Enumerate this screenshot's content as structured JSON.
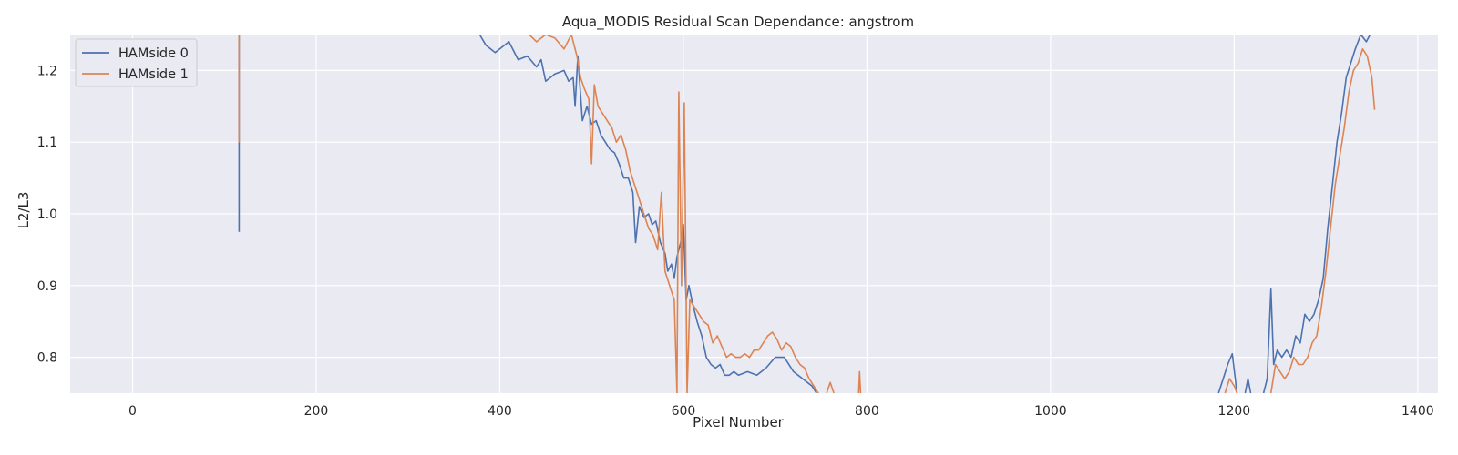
{
  "chart_data": {
    "type": "line",
    "title": "Aqua_MODIS Residual Scan Dependance: angstrom",
    "xlabel": "Pixel Number",
    "ylabel": "L2/L3",
    "xlim": [
      -68,
      1422
    ],
    "ylim": [
      0.75,
      1.25
    ],
    "xticks": [
      0,
      200,
      400,
      600,
      800,
      1000,
      1200,
      1400
    ],
    "yticks": [
      0.8,
      0.9,
      1.0,
      1.1,
      1.2
    ],
    "grid": true,
    "legend_position": "top-left",
    "series": [
      {
        "name": "HAMside 0",
        "color": "#4c72b0",
        "segments": [
          [
            [
              116,
              1.25
            ],
            [
              116,
              1.055
            ],
            [
              116,
              0.975
            ]
          ],
          [
            [
              378,
              1.25
            ],
            [
              385,
              1.235
            ],
            [
              395,
              1.225
            ],
            [
              405,
              1.235
            ],
            [
              410,
              1.24
            ],
            [
              420,
              1.215
            ],
            [
              430,
              1.22
            ],
            [
              440,
              1.205
            ],
            [
              445,
              1.215
            ],
            [
              450,
              1.185
            ],
            [
              460,
              1.195
            ],
            [
              470,
              1.2
            ],
            [
              475,
              1.185
            ],
            [
              480,
              1.19
            ],
            [
              482,
              1.15
            ],
            [
              485,
              1.22
            ],
            [
              490,
              1.13
            ],
            [
              495,
              1.15
            ],
            [
              500,
              1.125
            ],
            [
              505,
              1.13
            ],
            [
              510,
              1.11
            ],
            [
              515,
              1.1
            ],
            [
              520,
              1.09
            ],
            [
              525,
              1.085
            ],
            [
              530,
              1.07
            ],
            [
              535,
              1.05
            ],
            [
              540,
              1.05
            ],
            [
              545,
              1.03
            ],
            [
              548,
              0.96
            ],
            [
              552,
              1.01
            ],
            [
              557,
              0.995
            ],
            [
              562,
              1.0
            ],
            [
              566,
              0.985
            ],
            [
              570,
              0.99
            ],
            [
              575,
              0.96
            ],
            [
              580,
              0.945
            ],
            [
              583,
              0.92
            ],
            [
              587,
              0.93
            ],
            [
              590,
              0.91
            ],
            [
              593,
              0.94
            ],
            [
              597,
              0.96
            ],
            [
              600,
              0.985
            ],
            [
              603,
              0.88
            ],
            [
              606,
              0.9
            ],
            [
              610,
              0.875
            ],
            [
              615,
              0.85
            ],
            [
              620,
              0.83
            ],
            [
              625,
              0.8
            ],
            [
              630,
              0.79
            ],
            [
              635,
              0.785
            ],
            [
              640,
              0.79
            ],
            [
              645,
              0.775
            ],
            [
              650,
              0.775
            ],
            [
              655,
              0.78
            ],
            [
              660,
              0.775
            ],
            [
              670,
              0.78
            ],
            [
              680,
              0.775
            ],
            [
              690,
              0.785
            ],
            [
              700,
              0.8
            ],
            [
              710,
              0.8
            ],
            [
              720,
              0.78
            ],
            [
              730,
              0.77
            ],
            [
              740,
              0.76
            ],
            [
              745,
              0.75
            ]
          ],
          [
            [
              1183,
              0.75
            ],
            [
              1188,
              0.77
            ],
            [
              1193,
              0.79
            ],
            [
              1198,
              0.805
            ],
            [
              1203,
              0.75
            ]
          ],
          [
            [
              1212,
              0.75
            ],
            [
              1215,
              0.77
            ],
            [
              1218,
              0.75
            ]
          ],
          [
            [
              1232,
              0.75
            ],
            [
              1236,
              0.77
            ],
            [
              1240,
              0.895
            ],
            [
              1243,
              0.79
            ],
            [
              1247,
              0.81
            ],
            [
              1252,
              0.8
            ],
            [
              1257,
              0.81
            ],
            [
              1262,
              0.8
            ],
            [
              1267,
              0.83
            ],
            [
              1272,
              0.82
            ],
            [
              1277,
              0.86
            ],
            [
              1282,
              0.85
            ],
            [
              1287,
              0.86
            ],
            [
              1292,
              0.88
            ],
            [
              1297,
              0.91
            ],
            [
              1302,
              0.98
            ],
            [
              1307,
              1.04
            ],
            [
              1312,
              1.1
            ],
            [
              1317,
              1.14
            ],
            [
              1322,
              1.19
            ],
            [
              1327,
              1.21
            ],
            [
              1332,
              1.23
            ],
            [
              1338,
              1.25
            ],
            [
              1344,
              1.24
            ],
            [
              1348,
              1.25
            ]
          ]
        ]
      },
      {
        "name": "HAMside 1",
        "color": "#dd8452",
        "segments": [
          [
            [
              116,
              1.25
            ],
            [
              116,
              1.1
            ],
            [
              116,
              1.25
            ]
          ],
          [
            [
              432,
              1.25
            ],
            [
              440,
              1.24
            ],
            [
              450,
              1.25
            ],
            [
              460,
              1.245
            ],
            [
              470,
              1.23
            ],
            [
              478,
              1.25
            ],
            [
              484,
              1.22
            ],
            [
              488,
              1.19
            ],
            [
              492,
              1.175
            ],
            [
              497,
              1.16
            ],
            [
              500,
              1.07
            ],
            [
              503,
              1.18
            ],
            [
              507,
              1.15
            ],
            [
              512,
              1.14
            ],
            [
              517,
              1.13
            ],
            [
              522,
              1.12
            ],
            [
              527,
              1.1
            ],
            [
              532,
              1.11
            ],
            [
              537,
              1.09
            ],
            [
              542,
              1.06
            ],
            [
              547,
              1.04
            ],
            [
              552,
              1.02
            ],
            [
              557,
              1.0
            ],
            [
              562,
              0.98
            ],
            [
              567,
              0.97
            ],
            [
              572,
              0.95
            ],
            [
              576,
              1.03
            ],
            [
              580,
              0.92
            ],
            [
              585,
              0.9
            ],
            [
              590,
              0.88
            ],
            [
              593,
              0.75
            ],
            [
              595,
              1.17
            ],
            [
              598,
              0.9
            ],
            [
              601,
              1.155
            ],
            [
              604,
              0.75
            ],
            [
              607,
              0.88
            ],
            [
              612,
              0.87
            ],
            [
              617,
              0.86
            ],
            [
              622,
              0.85
            ],
            [
              627,
              0.845
            ],
            [
              632,
              0.82
            ],
            [
              637,
              0.83
            ],
            [
              642,
              0.815
            ],
            [
              647,
              0.8
            ],
            [
              652,
              0.805
            ],
            [
              657,
              0.8
            ],
            [
              662,
              0.8
            ],
            [
              667,
              0.805
            ],
            [
              672,
              0.8
            ],
            [
              677,
              0.81
            ],
            [
              682,
              0.81
            ],
            [
              687,
              0.82
            ],
            [
              692,
              0.83
            ],
            [
              697,
              0.835
            ],
            [
              702,
              0.825
            ],
            [
              707,
              0.81
            ],
            [
              712,
              0.82
            ],
            [
              717,
              0.815
            ],
            [
              722,
              0.8
            ],
            [
              727,
              0.79
            ],
            [
              732,
              0.785
            ],
            [
              737,
              0.77
            ],
            [
              742,
              0.76
            ],
            [
              747,
              0.75
            ]
          ],
          [
            [
              756,
              0.75
            ],
            [
              760,
              0.765
            ],
            [
              764,
              0.75
            ]
          ],
          [
            [
              791,
              0.75
            ],
            [
              792,
              0.78
            ],
            [
              793,
              0.75
            ]
          ],
          [
            [
              1190,
              0.75
            ],
            [
              1195,
              0.77
            ],
            [
              1200,
              0.76
            ],
            [
              1203,
              0.75
            ]
          ],
          [
            [
              1240,
              0.75
            ],
            [
              1245,
              0.79
            ],
            [
              1250,
              0.78
            ],
            [
              1255,
              0.77
            ],
            [
              1260,
              0.78
            ],
            [
              1265,
              0.8
            ],
            [
              1270,
              0.79
            ],
            [
              1275,
              0.79
            ],
            [
              1280,
              0.8
            ],
            [
              1285,
              0.82
            ],
            [
              1290,
              0.83
            ],
            [
              1295,
              0.87
            ],
            [
              1300,
              0.92
            ],
            [
              1305,
              0.98
            ],
            [
              1310,
              1.04
            ],
            [
              1315,
              1.08
            ],
            [
              1320,
              1.12
            ],
            [
              1325,
              1.17
            ],
            [
              1330,
              1.2
            ],
            [
              1335,
              1.21
            ],
            [
              1340,
              1.23
            ],
            [
              1345,
              1.22
            ],
            [
              1350,
              1.19
            ],
            [
              1353,
              1.145
            ]
          ]
        ]
      }
    ]
  }
}
